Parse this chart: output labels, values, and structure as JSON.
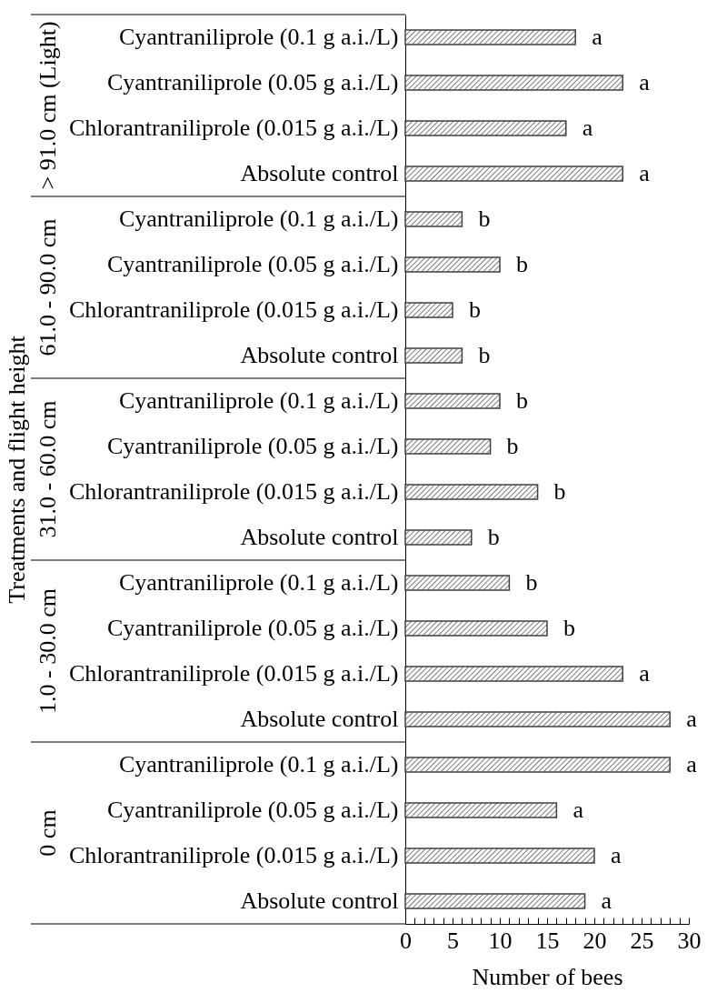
{
  "chart_data": {
    "type": "bar",
    "orientation": "horizontal",
    "xlabel": "Number of bees",
    "ylabel": "Treatments and flight height",
    "categories": [
      "Cyantraniliprole (0.1 g a.i./L)",
      "Cyantraniliprole (0.05 g a.i./L)",
      "Chlorantraniliprole (0.015 g a.i./L)",
      "Absolute control",
      "Cyantraniliprole (0.1 g a.i./L)",
      "Cyantraniliprole (0.05 g a.i./L)",
      "Chlorantraniliprole (0.015 g a.i./L)",
      "Absolute control",
      "Cyantraniliprole (0.1 g a.i./L)",
      "Cyantraniliprole (0.05 g a.i./L)",
      "Chlorantraniliprole (0.015 g a.i./L)",
      "Absolute control",
      "Cyantraniliprole (0.1 g a.i./L)",
      "Cyantraniliprole (0.05 g a.i./L)",
      "Chlorantraniliprole (0.015 g a.i./L)",
      "Absolute control",
      "Cyantraniliprole (0.1 g a.i./L)",
      "Cyantraniliprole (0.05 g a.i./L)",
      "Chlorantraniliprole (0.015 g a.i./L)",
      "Absolute control"
    ],
    "values": [
      18,
      23,
      17,
      23,
      6,
      10,
      5,
      6,
      10,
      9,
      14,
      7,
      11,
      15,
      23,
      28,
      28,
      16,
      20,
      19
    ],
    "value_labels": [
      "a",
      "a",
      "a",
      "a",
      "b",
      "b",
      "b",
      "b",
      "b",
      "b",
      "b",
      "b",
      "b",
      "b",
      "a",
      "a",
      "a",
      "a",
      "a",
      "a"
    ],
    "color": "#404040",
    "xlim": [
      0,
      30
    ],
    "xticks": [
      0,
      {
        "value": 1,
        "label": null
      },
      {
        "value": 2,
        "label": null
      },
      {
        "value": 3,
        "label": null
      },
      {
        "value": 4,
        "label": null
      },
      5,
      {
        "value": 6,
        "label": null
      },
      {
        "value": 7,
        "label": null
      },
      {
        "value": 8,
        "label": null
      },
      {
        "value": 9,
        "label": null
      },
      10,
      {
        "value": 11,
        "label": null
      },
      {
        "value": 12,
        "label": null
      },
      {
        "value": 13,
        "label": null
      },
      {
        "value": 14,
        "label": null
      },
      15,
      {
        "value": 16,
        "label": null
      },
      {
        "value": 17,
        "label": null
      },
      {
        "value": 18,
        "label": null
      },
      {
        "value": 19,
        "label": null
      },
      20,
      {
        "value": 21,
        "label": null
      },
      {
        "value": 22,
        "label": null
      },
      {
        "value": 23,
        "label": null
      },
      {
        "value": 24,
        "label": null
      },
      25,
      {
        "value": 26,
        "label": null
      },
      {
        "value": 27,
        "label": null
      },
      {
        "value": 28,
        "label": null
      },
      {
        "value": 29,
        "label": null
      },
      30
    ],
    "annotations": [
      "> 91.0 cm (Light)",
      "61.0 - 90.0 cm",
      "31.0 - 60.0 cm",
      "1.0 - 30.0 cm",
      "0 cm"
    ],
    "grid": false
  }
}
